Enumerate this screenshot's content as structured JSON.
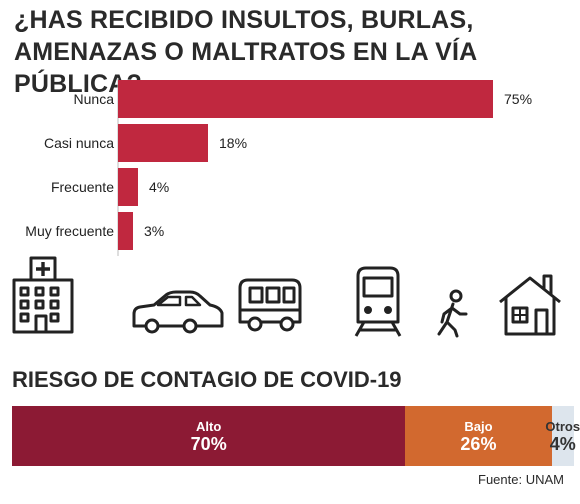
{
  "chart_data": [
    {
      "type": "bar",
      "orientation": "horizontal",
      "title": "¿HAS RECIBIDO INSULTOS, BURLAS, AMENAZAS O MALTRATOS EN LA VÍA PÚBLICA?",
      "categories": [
        "Nunca",
        "Casi nunca",
        "Frecuente",
        "Muy frecuente"
      ],
      "values": [
        75,
        18,
        4,
        3
      ],
      "value_labels": [
        "75%",
        "18%",
        "4%",
        "3%"
      ],
      "unit": "%",
      "xlim": [
        0,
        75
      ],
      "bar_color": "#c0283f",
      "grid": false
    },
    {
      "type": "bar",
      "orientation": "stacked-horizontal",
      "title": "RIESGO DE CONTAGIO DE COVID-19",
      "categories": [
        "Alto",
        "Bajo",
        "Otros"
      ],
      "values": [
        70,
        26,
        4
      ],
      "value_labels": [
        "70%",
        "26%",
        "4%"
      ],
      "unit": "%",
      "colors": [
        "#8c1a34",
        "#d2692f",
        "#dde5ed"
      ]
    }
  ],
  "icons": [
    "hospital-icon",
    "car-icon",
    "bus-icon",
    "train-icon",
    "walking-person-icon",
    "house-icon"
  ],
  "source": "Fuente: UNAM"
}
